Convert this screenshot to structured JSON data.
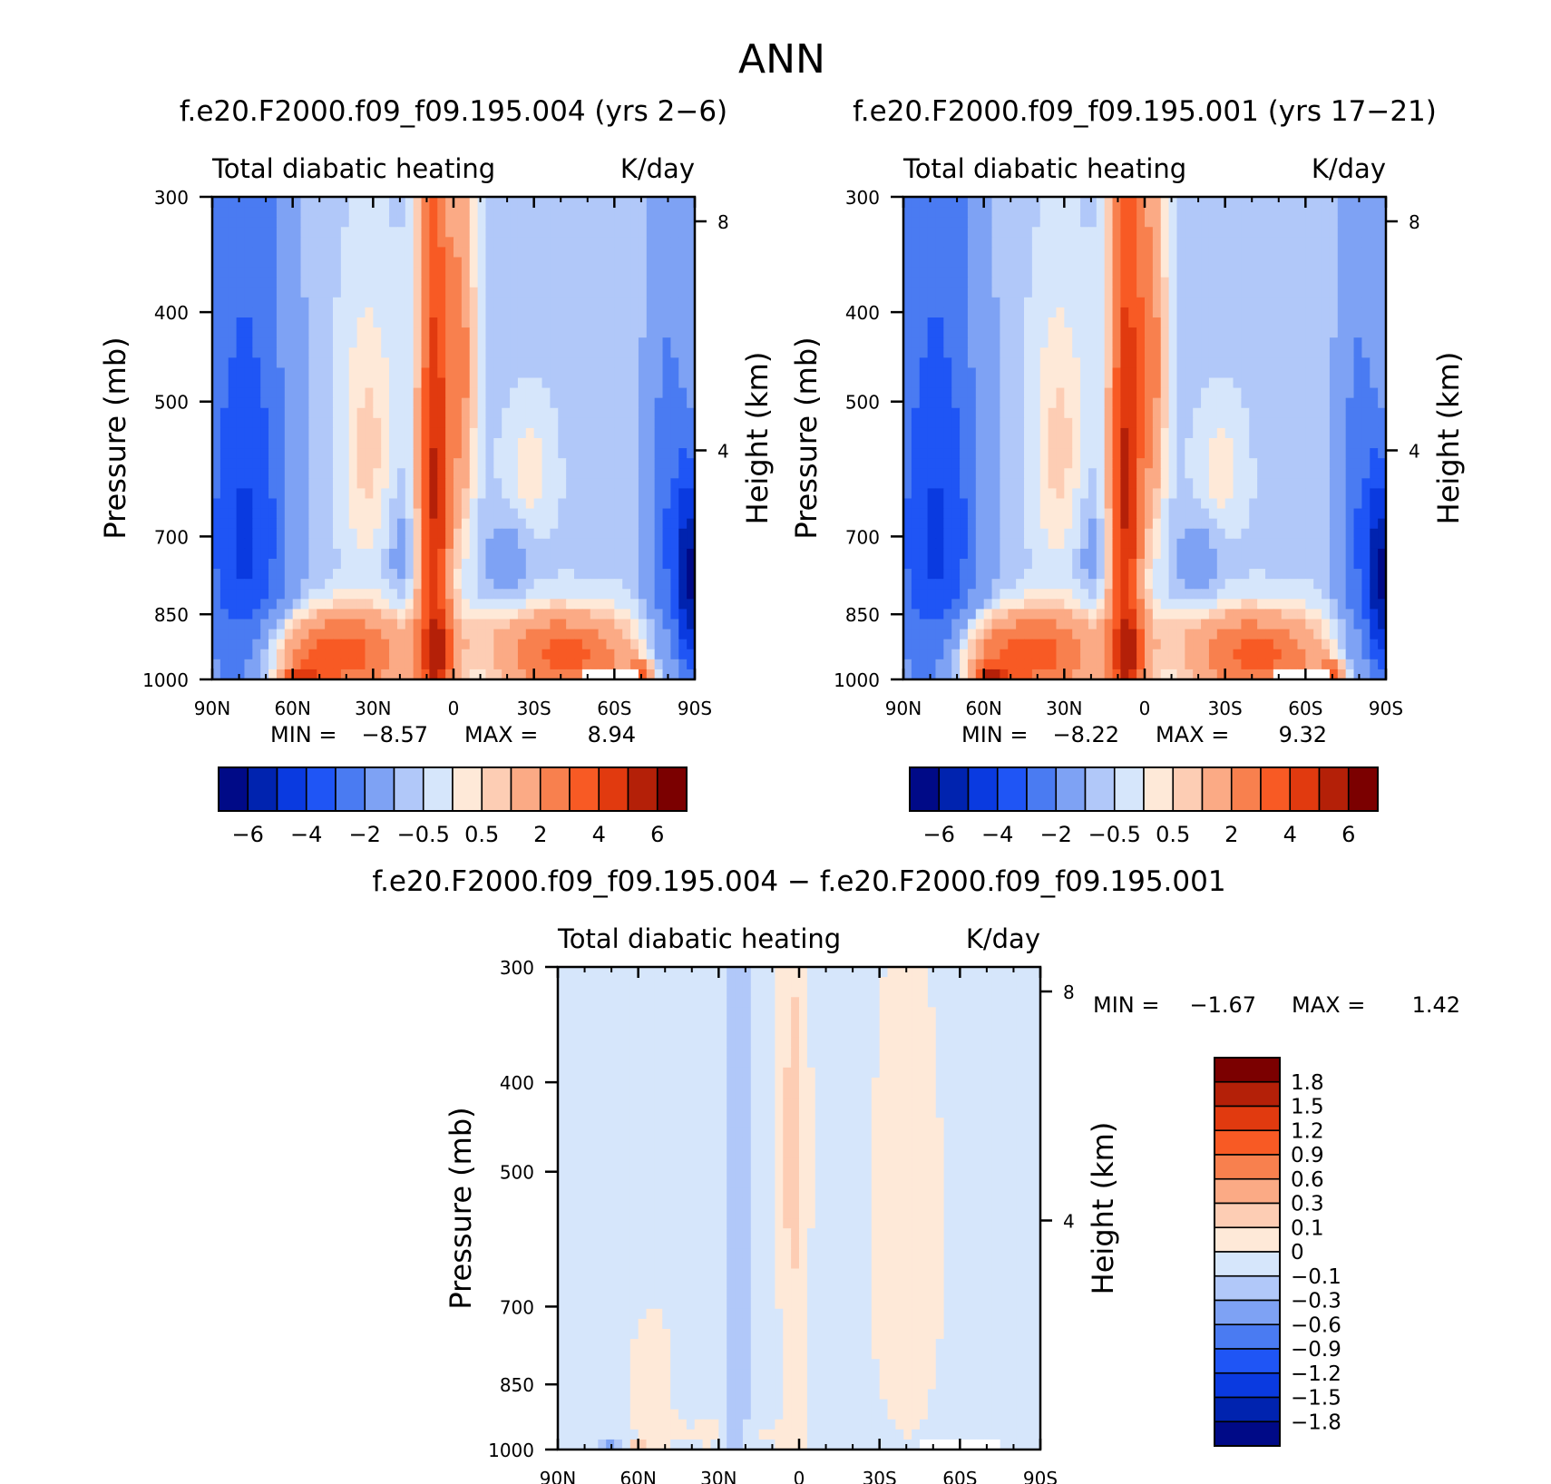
{
  "figure_title": "ANN",
  "chart_data": [
    {
      "type": "heatmap",
      "id": "panel1",
      "title": "f.e20.F2000.f09_f09.195.004 (yrs 2−6)",
      "subtitle_left": "Total diabatic heating",
      "subtitle_right": "K/day",
      "xlabel": "",
      "ylabel": "Pressure (mb)",
      "ylabel_right": "Height (km)",
      "x_ticks": [
        "90N",
        "60N",
        "30N",
        "0",
        "30S",
        "60S",
        "90S"
      ],
      "y_ticks": [
        "300",
        "400",
        "500",
        "700",
        "850",
        "1000"
      ],
      "y_ticks_right": [
        "8",
        "4"
      ],
      "min_label": "MIN =",
      "min_value": "−8.57",
      "max_label": "MAX =",
      "max_value": "8.94",
      "colorbar_levels": [
        -7,
        -6,
        -5,
        -4,
        -3,
        -2,
        -1,
        -0.5,
        0,
        0.5,
        1,
        2,
        3,
        4,
        5,
        6,
        7
      ],
      "colorbar_tick_labels": [
        "−6",
        "−4",
        "−2",
        "−0.5",
        "0.5",
        "2",
        "4",
        "6"
      ]
    },
    {
      "type": "heatmap",
      "id": "panel2",
      "title": "f.e20.F2000.f09_f09.195.001 (yrs 17−21)",
      "subtitle_left": "Total diabatic heating",
      "subtitle_right": "K/day",
      "xlabel": "",
      "ylabel": "Pressure (mb)",
      "ylabel_right": "Height (km)",
      "x_ticks": [
        "90N",
        "60N",
        "30N",
        "0",
        "30S",
        "60S",
        "90S"
      ],
      "y_ticks": [
        "300",
        "400",
        "500",
        "700",
        "850",
        "1000"
      ],
      "y_ticks_right": [
        "8",
        "4"
      ],
      "min_label": "MIN =",
      "min_value": "−8.22",
      "max_label": "MAX =",
      "max_value": "9.32",
      "colorbar_levels": [
        -7,
        -6,
        -5,
        -4,
        -3,
        -2,
        -1,
        -0.5,
        0,
        0.5,
        1,
        2,
        3,
        4,
        5,
        6,
        7
      ],
      "colorbar_tick_labels": [
        "−6",
        "−4",
        "−2",
        "−0.5",
        "0.5",
        "2",
        "4",
        "6"
      ]
    },
    {
      "type": "heatmap",
      "id": "panel3",
      "title": "f.e20.F2000.f09_f09.195.004 − f.e20.F2000.f09_f09.195.001",
      "subtitle_left": "Total diabatic heating",
      "subtitle_right": "K/day",
      "xlabel": "",
      "ylabel": "Pressure (mb)",
      "ylabel_right": "Height (km)",
      "x_ticks": [
        "90N",
        "60N",
        "30N",
        "0",
        "30S",
        "60S",
        "90S"
      ],
      "y_ticks": [
        "300",
        "400",
        "500",
        "700",
        "850",
        "1000"
      ],
      "y_ticks_right": [
        "8",
        "4"
      ],
      "min_label": "MIN =",
      "min_value": "−1.67",
      "max_label": "MAX =",
      "max_value": "1.42",
      "colorbar_tick_labels": [
        "1.8",
        "1.5",
        "1.2",
        "0.9",
        "0.6",
        "0.3",
        "0.1",
        "0",
        "−0.1",
        "−0.3",
        "−0.6",
        "−0.9",
        "−1.2",
        "−1.5",
        "−1.8"
      ]
    }
  ],
  "colors": {
    "palette": [
      "#000a87",
      "#0023af",
      "#0a3ae0",
      "#1f55f5",
      "#4a7bf2",
      "#7ea2f4",
      "#b1c8f9",
      "#d6e6fb",
      "#fee9d8",
      "#fdcdb4",
      "#fbaa85",
      "#f8804e",
      "#f85a24",
      "#e13a0f",
      "#b42008",
      "#7b0000"
    ],
    "cbar_upper_colors": [
      "#7b0000",
      "#b42008",
      "#e13a0f",
      "#f85a24",
      "#f8804e",
      "#fbaa85",
      "#fdcdb4",
      "#fee9d8"
    ],
    "cbar_lower_colors": [
      "#d6e6fb",
      "#b1c8f9",
      "#7ea2f4",
      "#4a7bf2",
      "#1f55f5",
      "#0a3ae0",
      "#0023af",
      "#000a87"
    ]
  }
}
